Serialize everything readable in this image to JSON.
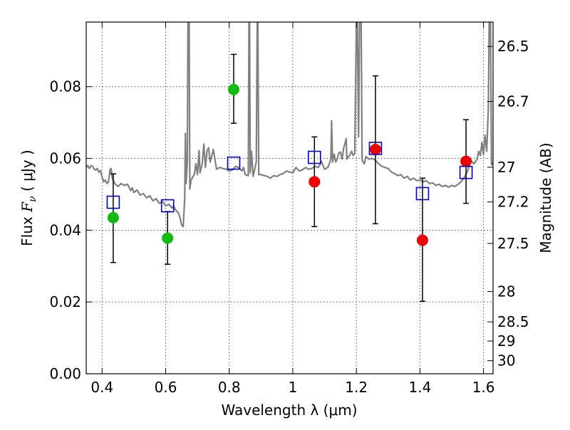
{
  "chart_data": {
    "type": "scatter",
    "xlabel": "Wavelength  λ (μm)",
    "ylabel": "Flux  F_ν  ( μJy )",
    "ylabel_parts": {
      "prefix": "Flux  ",
      "symbol": "F",
      "subscript": "ν",
      "suffix": "  (  μJy )"
    },
    "y2label": "Magnitude (AB)",
    "xlim": [
      0.35,
      1.63
    ],
    "ylim": [
      0.0,
      0.098
    ],
    "grid": true,
    "x_ticks": [
      {
        "value": 0.4,
        "label": "0.4"
      },
      {
        "value": 0.6,
        "label": "0.6"
      },
      {
        "value": 0.8,
        "label": "0.8"
      },
      {
        "value": 1.0,
        "label": "1"
      },
      {
        "value": 1.2,
        "label": "1.2"
      },
      {
        "value": 1.4,
        "label": "1.4"
      },
      {
        "value": 1.6,
        "label": "1.6"
      }
    ],
    "y_ticks": [
      {
        "value": 0.0,
        "label": "0.00"
      },
      {
        "value": 0.02,
        "label": "0.02"
      },
      {
        "value": 0.04,
        "label": "0.04"
      },
      {
        "value": 0.06,
        "label": "0.06"
      },
      {
        "value": 0.08,
        "label": "0.08"
      }
    ],
    "y2_ticks": [
      {
        "value": 26.5,
        "label": "26.5"
      },
      {
        "value": 26.7,
        "label": "26.7"
      },
      {
        "value": 27.0,
        "label": "27"
      },
      {
        "value": 27.2,
        "label": "27.2"
      },
      {
        "value": 27.5,
        "label": "27.5"
      },
      {
        "value": 28.0,
        "label": "28"
      },
      {
        "value": 28.5,
        "label": "28.5"
      },
      {
        "value": 29.0,
        "label": "29"
      },
      {
        "value": 30.0,
        "label": "30"
      }
    ],
    "colors": {
      "sed": "#808080",
      "model": "#0000cc",
      "green": "#11bb11",
      "red": "#ee0000",
      "errorbar": "#000000",
      "grid": "#555555"
    },
    "sed_model": [
      [
        0.35,
        0.0575
      ],
      [
        0.355,
        0.058
      ],
      [
        0.36,
        0.0572
      ],
      [
        0.365,
        0.058
      ],
      [
        0.37,
        0.0578
      ],
      [
        0.375,
        0.057
      ],
      [
        0.38,
        0.0568
      ],
      [
        0.385,
        0.0572
      ],
      [
        0.39,
        0.0562
      ],
      [
        0.395,
        0.0566
      ],
      [
        0.4,
        0.0548
      ],
      [
        0.405,
        0.0535
      ],
      [
        0.41,
        0.054
      ],
      [
        0.415,
        0.053
      ],
      [
        0.42,
        0.0535
      ],
      [
        0.425,
        0.0568
      ],
      [
        0.428,
        0.0572
      ],
      [
        0.432,
        0.0545
      ],
      [
        0.44,
        0.053
      ],
      [
        0.45,
        0.0522
      ],
      [
        0.46,
        0.053
      ],
      [
        0.47,
        0.0525
      ],
      [
        0.48,
        0.0528
      ],
      [
        0.49,
        0.051
      ],
      [
        0.495,
        0.0518
      ],
      [
        0.5,
        0.0505
      ],
      [
        0.51,
        0.0512
      ],
      [
        0.52,
        0.0498
      ],
      [
        0.53,
        0.0502
      ],
      [
        0.54,
        0.049
      ],
      [
        0.55,
        0.0496
      ],
      [
        0.56,
        0.0482
      ],
      [
        0.57,
        0.0488
      ],
      [
        0.58,
        0.0475
      ],
      [
        0.59,
        0.048
      ],
      [
        0.6,
        0.0468
      ],
      [
        0.61,
        0.0472
      ],
      [
        0.62,
        0.0462
      ],
      [
        0.625,
        0.0468
      ],
      [
        0.63,
        0.0458
      ],
      [
        0.64,
        0.0448
      ],
      [
        0.645,
        0.0435
      ],
      [
        0.65,
        0.0415
      ],
      [
        0.655,
        0.041
      ],
      [
        0.66,
        0.049
      ],
      [
        0.662,
        0.067
      ],
      [
        0.664,
        0.053
      ],
      [
        0.668,
        0.059
      ],
      [
        0.67,
        0.098
      ],
      [
        0.674,
        0.098
      ],
      [
        0.676,
        0.0515
      ],
      [
        0.68,
        0.054
      ],
      [
        0.69,
        0.0555
      ],
      [
        0.695,
        0.0585
      ],
      [
        0.7,
        0.0555
      ],
      [
        0.705,
        0.0622
      ],
      [
        0.708,
        0.056
      ],
      [
        0.715,
        0.0585
      ],
      [
        0.72,
        0.064
      ],
      [
        0.725,
        0.0575
      ],
      [
        0.73,
        0.062
      ],
      [
        0.735,
        0.063
      ],
      [
        0.74,
        0.059
      ],
      [
        0.75,
        0.0625
      ],
      [
        0.76,
        0.057
      ],
      [
        0.77,
        0.0575
      ],
      [
        0.78,
        0.0572
      ],
      [
        0.79,
        0.057
      ],
      [
        0.8,
        0.0565
      ],
      [
        0.81,
        0.0568
      ],
      [
        0.82,
        0.0578
      ],
      [
        0.83,
        0.0575
      ],
      [
        0.84,
        0.0565
      ],
      [
        0.845,
        0.0575
      ],
      [
        0.85,
        0.0555
      ],
      [
        0.86,
        0.0552
      ],
      [
        0.862,
        0.098
      ],
      [
        0.864,
        0.098
      ],
      [
        0.866,
        0.056
      ],
      [
        0.87,
        0.062
      ],
      [
        0.875,
        0.055
      ],
      [
        0.885,
        0.059
      ],
      [
        0.888,
        0.098
      ],
      [
        0.89,
        0.098
      ],
      [
        0.893,
        0.0555
      ],
      [
        0.9,
        0.0555
      ],
      [
        0.91,
        0.0552
      ],
      [
        0.92,
        0.055
      ],
      [
        0.93,
        0.0545
      ],
      [
        0.94,
        0.0552
      ],
      [
        0.95,
        0.055
      ],
      [
        0.96,
        0.0555
      ],
      [
        0.97,
        0.0558
      ],
      [
        0.98,
        0.0565
      ],
      [
        0.99,
        0.0562
      ],
      [
        1.0,
        0.056
      ],
      [
        1.01,
        0.0575
      ],
      [
        1.02,
        0.0565
      ],
      [
        1.03,
        0.0568
      ],
      [
        1.04,
        0.0575
      ],
      [
        1.05,
        0.057
      ],
      [
        1.06,
        0.0572
      ],
      [
        1.07,
        0.0578
      ],
      [
        1.08,
        0.0575
      ],
      [
        1.085,
        0.0582
      ],
      [
        1.09,
        0.0592
      ],
      [
        1.095,
        0.058
      ],
      [
        1.1,
        0.057
      ],
      [
        1.11,
        0.0575
      ],
      [
        1.115,
        0.0585
      ],
      [
        1.12,
        0.0602
      ],
      [
        1.122,
        0.0705
      ],
      [
        1.125,
        0.059
      ],
      [
        1.13,
        0.0612
      ],
      [
        1.135,
        0.059
      ],
      [
        1.14,
        0.06
      ],
      [
        1.145,
        0.0615
      ],
      [
        1.15,
        0.0618
      ],
      [
        1.155,
        0.0598
      ],
      [
        1.16,
        0.0628
      ],
      [
        1.165,
        0.0645
      ],
      [
        1.168,
        0.0655
      ],
      [
        1.17,
        0.0598
      ],
      [
        1.175,
        0.0605
      ],
      [
        1.18,
        0.061
      ],
      [
        1.185,
        0.062
      ],
      [
        1.19,
        0.0608
      ],
      [
        1.195,
        0.0615
      ],
      [
        1.2,
        0.098
      ],
      [
        1.203,
        0.098
      ],
      [
        1.207,
        0.066
      ],
      [
        1.21,
        0.098
      ],
      [
        1.215,
        0.098
      ],
      [
        1.218,
        0.0595
      ],
      [
        1.225,
        0.0585
      ],
      [
        1.23,
        0.0605
      ],
      [
        1.24,
        0.0598
      ],
      [
        1.25,
        0.06
      ],
      [
        1.26,
        0.0595
      ],
      [
        1.27,
        0.0585
      ],
      [
        1.28,
        0.0578
      ],
      [
        1.29,
        0.0575
      ],
      [
        1.3,
        0.0572
      ],
      [
        1.31,
        0.0562
      ],
      [
        1.32,
        0.0558
      ],
      [
        1.33,
        0.0552
      ],
      [
        1.34,
        0.0555
      ],
      [
        1.35,
        0.0545
      ],
      [
        1.36,
        0.055
      ],
      [
        1.37,
        0.054
      ],
      [
        1.38,
        0.0545
      ],
      [
        1.39,
        0.0538
      ],
      [
        1.4,
        0.054
      ],
      [
        1.41,
        0.0535
      ],
      [
        1.42,
        0.0538
      ],
      [
        1.43,
        0.053
      ],
      [
        1.44,
        0.0532
      ],
      [
        1.45,
        0.0525
      ],
      [
        1.46,
        0.0528
      ],
      [
        1.47,
        0.0522
      ],
      [
        1.48,
        0.0525
      ],
      [
        1.49,
        0.052
      ],
      [
        1.5,
        0.0525
      ],
      [
        1.51,
        0.0522
      ],
      [
        1.52,
        0.0528
      ],
      [
        1.53,
        0.0535
      ],
      [
        1.54,
        0.0548
      ],
      [
        1.55,
        0.0565
      ],
      [
        1.56,
        0.0595
      ],
      [
        1.57,
        0.0585
      ],
      [
        1.58,
        0.0598
      ],
      [
        1.585,
        0.062
      ],
      [
        1.59,
        0.0608
      ],
      [
        1.595,
        0.0645
      ],
      [
        1.6,
        0.061
      ],
      [
        1.605,
        0.0665
      ],
      [
        1.61,
        0.062
      ],
      [
        1.615,
        0.0735
      ],
      [
        1.618,
        0.098
      ],
      [
        1.622,
        0.098
      ],
      [
        1.625,
        0.0582
      ],
      [
        1.63,
        0.059
      ]
    ],
    "model_photometry": [
      {
        "x": 0.435,
        "y": 0.0478
      },
      {
        "x": 0.606,
        "y": 0.0468
      },
      {
        "x": 0.814,
        "y": 0.0587
      },
      {
        "x": 1.068,
        "y": 0.0603
      },
      {
        "x": 1.26,
        "y": 0.0628
      },
      {
        "x": 1.408,
        "y": 0.0502
      },
      {
        "x": 1.545,
        "y": 0.0561
      }
    ],
    "observed": [
      {
        "x": 0.435,
        "y": 0.0435,
        "err_lo": 0.031,
        "err_hi": 0.0557,
        "color": "green"
      },
      {
        "x": 0.606,
        "y": 0.0378,
        "err_lo": 0.0305,
        "err_hi": 0.0452,
        "color": "green"
      },
      {
        "x": 0.814,
        "y": 0.0792,
        "err_lo": 0.0698,
        "err_hi": 0.089,
        "color": "green"
      },
      {
        "x": 1.068,
        "y": 0.0535,
        "err_lo": 0.041,
        "err_hi": 0.066,
        "color": "red"
      },
      {
        "x": 1.26,
        "y": 0.0625,
        "err_lo": 0.0418,
        "err_hi": 0.083,
        "color": "red"
      },
      {
        "x": 1.408,
        "y": 0.0372,
        "err_lo": 0.0202,
        "err_hi": 0.0545,
        "color": "red"
      },
      {
        "x": 1.545,
        "y": 0.0592,
        "err_lo": 0.0475,
        "err_hi": 0.0708,
        "color": "red"
      }
    ]
  }
}
